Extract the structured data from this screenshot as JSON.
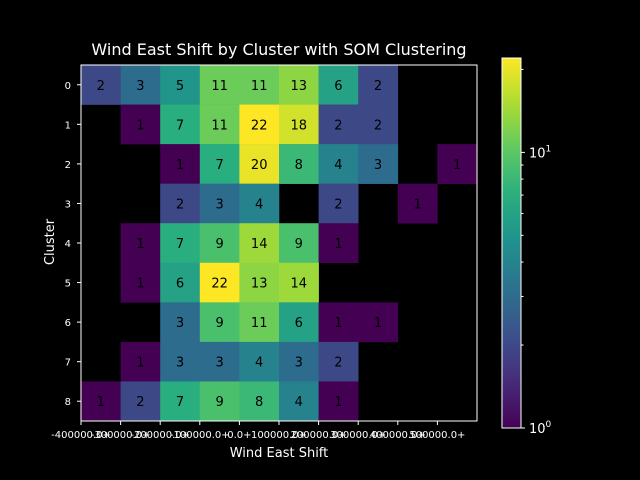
{
  "chart_data": {
    "type": "heatmap",
    "title": "Wind East Shift by Cluster with SOM Clustering",
    "xlabel": "Wind East Shift",
    "ylabel": "Cluster",
    "x_tick_labels": [
      "-400000.0+",
      "-300000.0+",
      "-200000.0+",
      "-100000.0+",
      "0.0+",
      "100000.0+",
      "200000.0+",
      "300000.0+",
      "400000.0+",
      "500000.0+"
    ],
    "y_tick_labels": [
      "0",
      "1",
      "2",
      "3",
      "4",
      "5",
      "6",
      "7",
      "8"
    ],
    "values": [
      [
        2,
        3,
        5,
        11,
        11,
        13,
        6,
        2,
        null,
        null
      ],
      [
        null,
        1,
        7,
        11,
        22,
        18,
        2,
        2,
        null,
        null
      ],
      [
        null,
        null,
        1,
        7,
        20,
        8,
        4,
        3,
        null,
        1
      ],
      [
        null,
        null,
        2,
        3,
        4,
        null,
        2,
        null,
        1,
        null
      ],
      [
        null,
        1,
        7,
        9,
        14,
        9,
        1,
        null,
        null,
        null
      ],
      [
        null,
        1,
        6,
        22,
        13,
        14,
        null,
        null,
        null,
        null
      ],
      [
        null,
        null,
        3,
        9,
        11,
        6,
        1,
        1,
        null,
        null
      ],
      [
        null,
        1,
        3,
        3,
        4,
        3,
        2,
        null,
        null,
        null
      ],
      [
        1,
        2,
        7,
        9,
        8,
        4,
        1,
        null,
        null,
        null
      ]
    ],
    "colorbar": {
      "scale": "log",
      "colormap": "viridis",
      "min": 1,
      "max": 22,
      "tick_labels": [
        {
          "base": "10",
          "exp": "0",
          "value": 1
        },
        {
          "base": "10",
          "exp": "1",
          "value": 10
        }
      ]
    },
    "grid": false,
    "colors": {
      "background": "#000000",
      "text": "#ffffff",
      "empty_cell": "#000000"
    }
  }
}
